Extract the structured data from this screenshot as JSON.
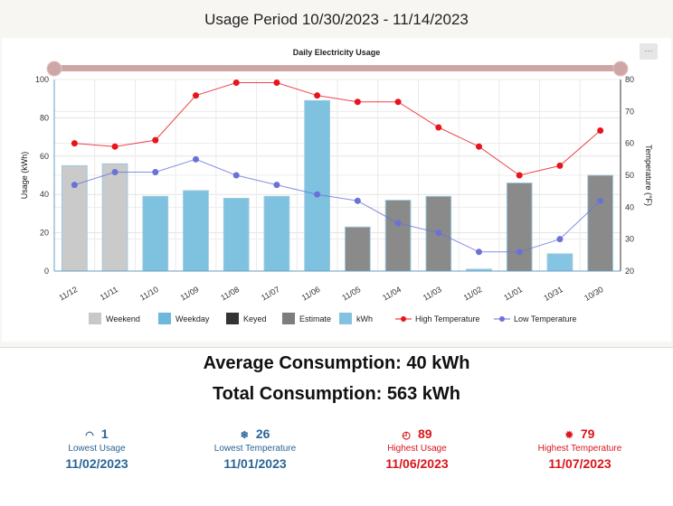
{
  "header": {
    "title": "Usage Period 10/30/2023 - 11/14/2023",
    "menu_label": "···"
  },
  "chart_data": {
    "type": "bar",
    "title": "Daily Electricity Usage",
    "categories": [
      "11/12",
      "11/11",
      "11/10",
      "11/09",
      "11/08",
      "11/07",
      "11/06",
      "11/05",
      "11/04",
      "11/03",
      "11/02",
      "11/01",
      "10/31",
      "10/30"
    ],
    "values": [
      55,
      56,
      39,
      42,
      38,
      39,
      89,
      23,
      37,
      39,
      1,
      46,
      9,
      50
    ],
    "bar_types": [
      "Weekend",
      "Weekend",
      "Weekday",
      "Weekday",
      "Weekday",
      "Weekday",
      "Weekday",
      "Estimate",
      "Estimate",
      "Estimate",
      "kWh",
      "Estimate",
      "kWh",
      "Estimate"
    ],
    "series": [
      {
        "name": "High Temperature",
        "values": [
          60,
          59,
          61,
          75,
          79,
          79,
          75,
          73,
          73,
          65,
          59,
          50,
          53,
          64
        ],
        "color": "#e8141b"
      },
      {
        "name": "Low Temperature",
        "values": [
          47,
          51,
          51,
          55,
          50,
          47,
          44,
          42,
          35,
          32,
          26,
          26,
          30,
          42
        ],
        "color": "#6a72d6"
      }
    ],
    "ylabel": "Usage (kWh)",
    "ylim": [
      0,
      100
    ],
    "yticks": [
      0,
      20,
      40,
      60,
      80,
      100
    ],
    "y2label": "Temperature (°F)",
    "y2lim": [
      20,
      80
    ],
    "y2ticks": [
      20,
      30,
      40,
      50,
      60,
      70,
      80
    ],
    "grid": true,
    "legend_placement": "bottom",
    "legend": [
      {
        "name": "Weekend",
        "color": "#c8c8c8",
        "kind": "box"
      },
      {
        "name": "Weekday",
        "color": "#6cb8dc",
        "kind": "box"
      },
      {
        "name": "Keyed",
        "color": "#333333",
        "kind": "box"
      },
      {
        "name": "Estimate",
        "color": "#7d7d7d",
        "kind": "box"
      },
      {
        "name": "kWh",
        "color": "#83c3e1",
        "kind": "box"
      },
      {
        "name": "High Temperature",
        "color": "#e8141b",
        "kind": "line"
      },
      {
        "name": "Low Temperature",
        "color": "#6a72d6",
        "kind": "line"
      }
    ],
    "colors": {
      "Weekend": "#cacaca",
      "Weekday": "#7fc2e0",
      "Estimate": "#8a8a8a",
      "kWh": "#85c5e3"
    }
  },
  "summary": {
    "average": "Average Consumption: 40 kWh",
    "total": "Total Consumption: 563 kWh"
  },
  "stats": [
    {
      "value": "1",
      "label": "Lowest Usage",
      "date": "11/02/2023",
      "icon": "◠"
    },
    {
      "value": "26",
      "label": "Lowest Temperature",
      "date": "11/01/2023",
      "icon": "❄"
    },
    {
      "value": "89",
      "label": "Highest Usage",
      "date": "11/06/2023",
      "icon": "◴"
    },
    {
      "value": "79",
      "label": "Highest Temperature",
      "date": "11/07/2023",
      "icon": "✹"
    }
  ]
}
